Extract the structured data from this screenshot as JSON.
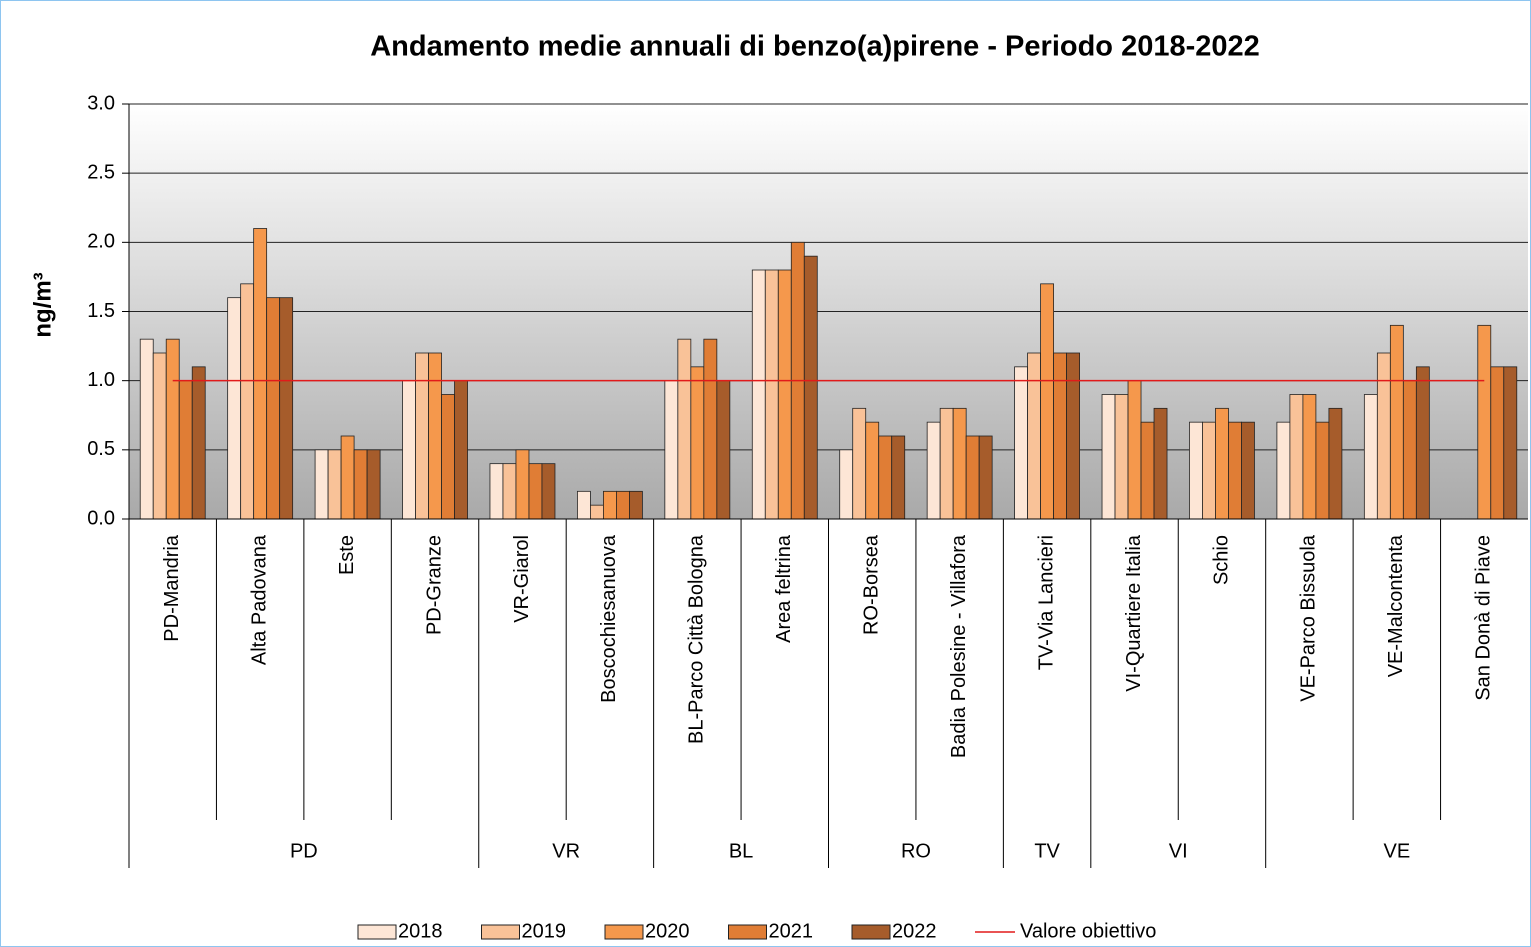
{
  "chart_data": {
    "type": "bar",
    "title": "Andamento medie annuali di benzo(a)pirene - Periodo 2018-2022",
    "y_label": "ng/m³",
    "categories": [
      "PD-Mandria",
      "Alta Padovana",
      "Este",
      "PD-Granze",
      "VR-Giarol",
      "Boscochiesanuova",
      "BL-Parco Città Bologna",
      "Area feltrina",
      "RO-Borsea",
      "Badia Polesine - Villafora",
      "TV-Via Lancieri",
      "VI-Quartiere Italia",
      "Schio",
      "VE-Parco Bissuola",
      "VE-Malcontenta",
      "San Donà di Piave"
    ],
    "groups": [
      {
        "label": "PD",
        "span": 4
      },
      {
        "label": "VR",
        "span": 2
      },
      {
        "label": "BL",
        "span": 2
      },
      {
        "label": "RO",
        "span": 2
      },
      {
        "label": "TV",
        "span": 1
      },
      {
        "label": "VI",
        "span": 2
      },
      {
        "label": "VE",
        "span": 3
      }
    ],
    "series": [
      {
        "name": "2018",
        "color": "#fde6d6",
        "values": [
          1.3,
          1.6,
          0.5,
          1.0,
          0.4,
          0.2,
          1.0,
          1.8,
          0.5,
          0.7,
          1.1,
          0.9,
          0.7,
          0.7,
          0.9,
          null
        ]
      },
      {
        "name": "2019",
        "color": "#f9c298",
        "values": [
          1.2,
          1.7,
          0.5,
          1.2,
          0.4,
          0.1,
          1.3,
          1.8,
          0.8,
          0.8,
          1.2,
          0.9,
          0.7,
          0.9,
          1.2,
          null
        ]
      },
      {
        "name": "2020",
        "color": "#f5984c",
        "values": [
          1.3,
          2.1,
          0.6,
          1.2,
          0.5,
          0.2,
          1.1,
          1.8,
          0.7,
          0.8,
          1.7,
          1.0,
          0.8,
          0.9,
          1.4,
          1.4
        ]
      },
      {
        "name": "2021",
        "color": "#e07d35",
        "values": [
          1.0,
          1.6,
          0.5,
          0.9,
          0.4,
          0.2,
          1.3,
          2.0,
          0.6,
          0.6,
          1.2,
          0.7,
          0.7,
          0.7,
          1.0,
          1.1
        ]
      },
      {
        "name": "2022",
        "color": "#a65c2b",
        "values": [
          1.1,
          1.6,
          0.5,
          1.0,
          0.4,
          0.2,
          1.0,
          1.9,
          0.6,
          0.6,
          1.2,
          0.8,
          0.7,
          0.8,
          1.1,
          1.1
        ]
      }
    ],
    "target": {
      "name": "Valore obiettivo",
      "value": 1.0,
      "color": "#e21a1a"
    },
    "ylim": [
      0,
      3
    ],
    "yticks": [
      {
        "value": 0,
        "label": "0.0"
      },
      0.5,
      {
        "value": 1,
        "label": "1.0"
      },
      1.5,
      {
        "value": 2,
        "label": "2.0"
      },
      2.5,
      {
        "value": 3,
        "label": "3.0"
      }
    ],
    "grid": true
  }
}
